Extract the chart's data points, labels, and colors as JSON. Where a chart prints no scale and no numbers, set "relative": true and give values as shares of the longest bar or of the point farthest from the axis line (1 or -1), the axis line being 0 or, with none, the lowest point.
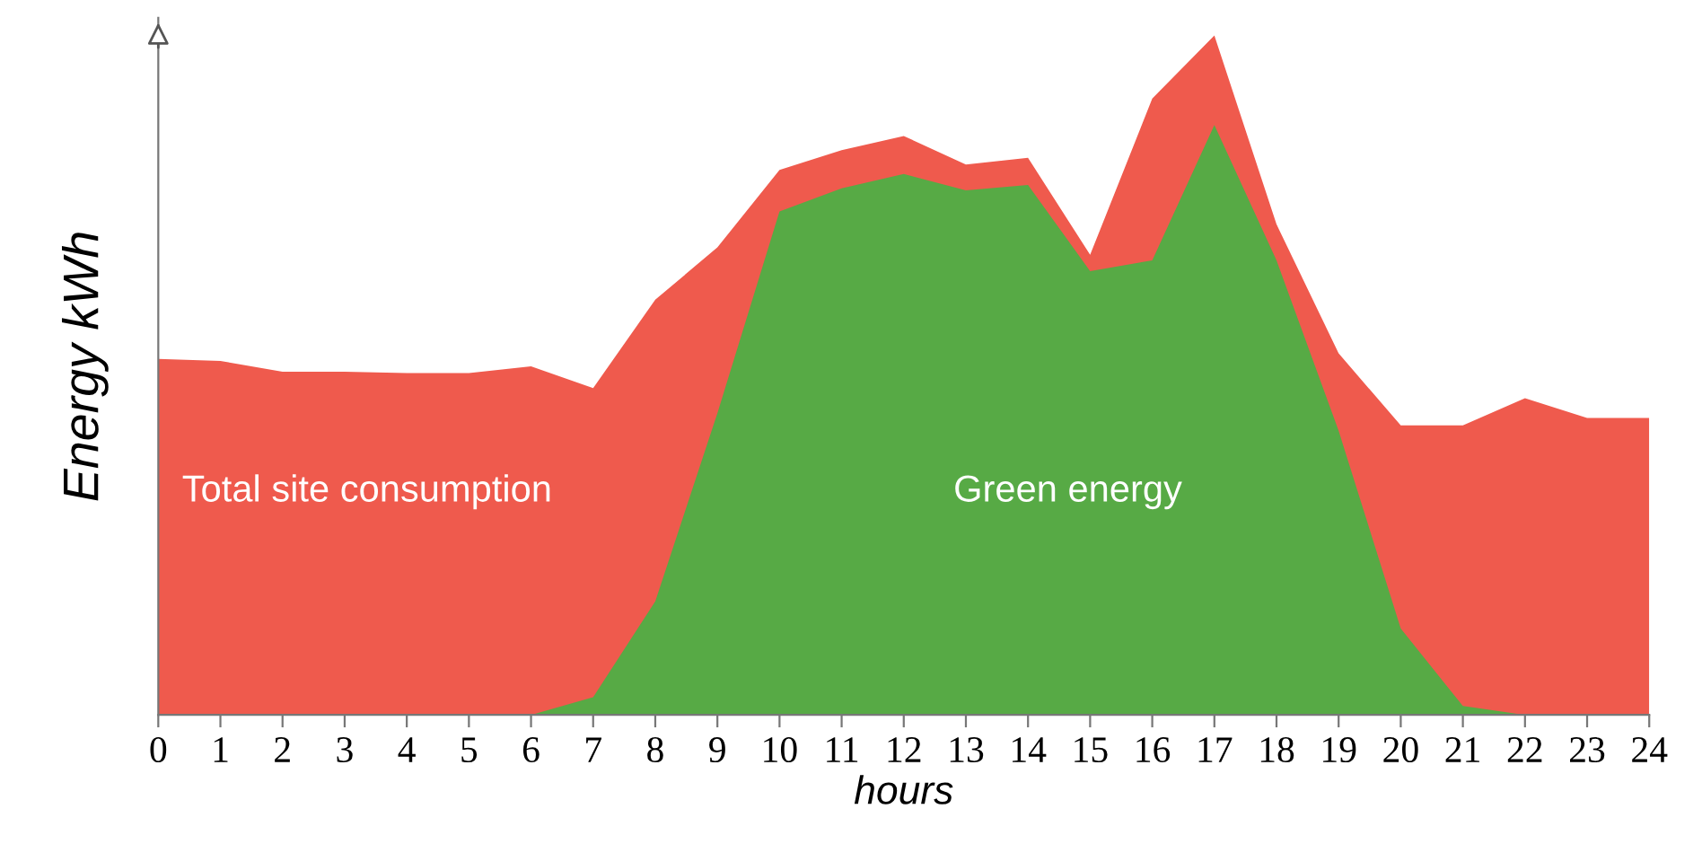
{
  "chart_data": {
    "type": "area",
    "relative": true,
    "xlabel": "hours",
    "ylabel": "Energy kWh",
    "x": [
      0,
      1,
      2,
      3,
      4,
      5,
      6,
      7,
      8,
      9,
      10,
      11,
      12,
      13,
      14,
      15,
      16,
      17,
      18,
      19,
      20,
      21,
      22,
      23,
      24
    ],
    "xlim": [
      0,
      24
    ],
    "xticks": [
      0,
      1,
      2,
      3,
      4,
      5,
      6,
      7,
      8,
      9,
      10,
      11,
      12,
      13,
      14,
      15,
      16,
      17,
      18,
      19,
      20,
      21,
      22,
      23,
      24
    ],
    "legend": false,
    "grid": false,
    "series": [
      {
        "name": "Total site consumption",
        "color": "#ef5a4d",
        "values": [
          0.524,
          0.521,
          0.505,
          0.505,
          0.503,
          0.503,
          0.513,
          0.481,
          0.611,
          0.688,
          0.802,
          0.831,
          0.852,
          0.81,
          0.82,
          0.677,
          0.907,
          1,
          0.722,
          0.532,
          0.426,
          0.426,
          0.466,
          0.437,
          0.437
        ]
      },
      {
        "name": "Green energy",
        "color": "#57aa45",
        "x": [
          6,
          7,
          8,
          9,
          10,
          11,
          12,
          13,
          14,
          15,
          16,
          17,
          18,
          19,
          20,
          21,
          22
        ],
        "values": [
          0,
          0.026,
          0.167,
          0.444,
          0.741,
          0.775,
          0.796,
          0.772,
          0.78,
          0.653,
          0.669,
          0.868,
          0.669,
          0.418,
          0.127,
          0.013,
          0
        ]
      }
    ]
  }
}
